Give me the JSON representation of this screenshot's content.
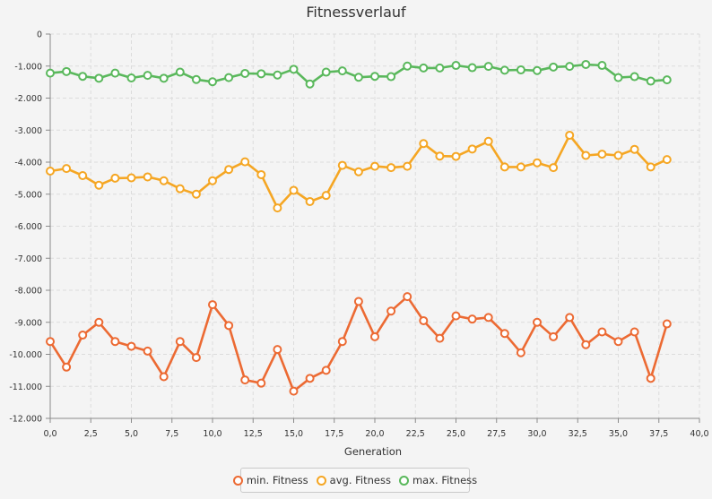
{
  "chart_data": {
    "type": "line",
    "title": "Fitnessverlauf",
    "xlabel": "Generation",
    "ylabel": "",
    "xlim": [
      0,
      40
    ],
    "ylim": [
      -12000,
      0
    ],
    "x_ticks": [
      0,
      2.5,
      5,
      7.5,
      10,
      12.5,
      15,
      17.5,
      20,
      22.5,
      25,
      27.5,
      30,
      32.5,
      35,
      37.5,
      40
    ],
    "x_tick_labels": [
      "0,0",
      "2,5",
      "5,0",
      "7,5",
      "10,0",
      "12,5",
      "15,0",
      "17,5",
      "20,0",
      "22,5",
      "25,0",
      "27,5",
      "30,0",
      "32,5",
      "35,0",
      "37,5",
      "40,0"
    ],
    "y_ticks": [
      0,
      -1000,
      -2000,
      -3000,
      -4000,
      -5000,
      -6000,
      -7000,
      -8000,
      -9000,
      -10000,
      -11000,
      -12000
    ],
    "y_tick_labels": [
      "0",
      "-1.000",
      "-2.000",
      "-3.000",
      "-4.000",
      "-5.000",
      "-6.000",
      "-7.000",
      "-8.000",
      "-9.000",
      "-10.000",
      "-11.000",
      "-12.000"
    ],
    "grid": true,
    "legend_position": "bottom",
    "x": [
      0,
      1,
      2,
      3,
      4,
      5,
      6,
      7,
      8,
      9,
      10,
      11,
      12,
      13,
      14,
      15,
      16,
      17,
      18,
      19,
      20,
      21,
      22,
      23,
      24,
      25,
      26,
      27,
      28,
      29,
      30,
      31,
      32,
      33,
      34,
      35,
      36,
      37,
      38
    ],
    "series": [
      {
        "name": "min. Fitness",
        "color": "#ec6a33",
        "values": [
          -9600,
          -10400,
          -9400,
          -9000,
          -9600,
          -9750,
          -9900,
          -10700,
          -9600,
          -10100,
          -8450,
          -9100,
          -10800,
          -10900,
          -9850,
          -11150,
          -10750,
          -10500,
          -9600,
          -8350,
          -9450,
          -8650,
          -8200,
          -8950,
          -9500,
          -8800,
          -8900,
          -8850,
          -9350,
          -9950,
          -9000,
          -9450,
          -8850,
          -9700,
          -9300,
          -9600,
          -9300,
          -10750,
          -9050
        ]
      },
      {
        "name": "avg. Fitness",
        "color": "#f5a623",
        "values": [
          -4280,
          -4200,
          -4420,
          -4720,
          -4500,
          -4490,
          -4460,
          -4580,
          -4830,
          -5000,
          -4580,
          -4230,
          -3990,
          -4390,
          -5430,
          -4880,
          -5230,
          -5040,
          -4100,
          -4300,
          -4130,
          -4170,
          -4130,
          -3420,
          -3810,
          -3820,
          -3590,
          -3350,
          -4150,
          -4150,
          -4020,
          -4170,
          -3160,
          -3790,
          -3750,
          -3790,
          -3600,
          -4150,
          -3920
        ]
      },
      {
        "name": "max. Fitness",
        "color": "#5ab85c",
        "values": [
          -1220,
          -1170,
          -1320,
          -1380,
          -1220,
          -1370,
          -1290,
          -1380,
          -1190,
          -1420,
          -1490,
          -1360,
          -1230,
          -1240,
          -1280,
          -1100,
          -1560,
          -1190,
          -1150,
          -1350,
          -1320,
          -1330,
          -1000,
          -1060,
          -1060,
          -980,
          -1050,
          -1010,
          -1130,
          -1120,
          -1140,
          -1030,
          -1010,
          -950,
          -980,
          -1360,
          -1330,
          -1470,
          -1430
        ]
      }
    ]
  }
}
